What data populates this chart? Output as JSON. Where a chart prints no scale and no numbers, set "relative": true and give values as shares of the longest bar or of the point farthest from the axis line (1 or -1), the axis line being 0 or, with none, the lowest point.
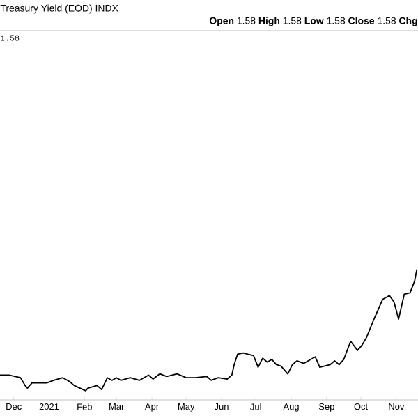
{
  "chart_data": {
    "type": "line",
    "title": "Treasury Yield (EOD) INDX",
    "subtitle": "**Open** 1.58 **High** 1.58 **Low** 1.58 **Close** 1.58 **Chg**",
    "annotations": [
      "1.58"
    ],
    "relative": true,
    "color": "#000000",
    "xlim": [
      "2020-11-19",
      "2021-11-20"
    ],
    "xticks": [
      {
        "value": "2020-12-01",
        "label": "Dec"
      },
      {
        "value": "2021-01-01",
        "label": "2021"
      },
      {
        "value": "2021-02-01",
        "label": "Feb"
      },
      {
        "value": "2021-03-01",
        "label": "Mar"
      },
      {
        "value": "2021-04-01",
        "label": "Apr"
      },
      {
        "value": "2021-05-01",
        "label": "May"
      },
      {
        "value": "2021-06-01",
        "label": "Jun"
      },
      {
        "value": "2021-07-01",
        "label": "Jul"
      },
      {
        "value": "2021-08-01",
        "label": "Aug"
      },
      {
        "value": "2021-09-01",
        "label": "Sep"
      },
      {
        "value": "2021-10-01",
        "label": "Oct"
      },
      {
        "value": "2021-11-01",
        "label": "Nov"
      }
    ],
    "x": [
      "2020-11-19",
      "2020-11-27",
      "2020-12-07",
      "2020-12-11",
      "2020-12-13",
      "2020-12-17",
      "2020-12-30",
      "2021-01-05",
      "2021-01-13",
      "2021-01-19",
      "2021-01-23",
      "2021-02-02",
      "2021-02-04",
      "2021-02-12",
      "2021-02-16",
      "2021-02-21",
      "2021-02-25",
      "2021-03-01",
      "2021-03-05",
      "2021-03-13",
      "2021-03-21",
      "2021-03-29",
      "2021-04-02",
      "2021-04-08",
      "2021-04-14",
      "2021-04-23",
      "2021-05-01",
      "2021-05-09",
      "2021-05-19",
      "2021-05-23",
      "2021-05-29",
      "2021-06-06",
      "2021-06-10",
      "2021-06-12",
      "2021-06-15",
      "2021-06-20",
      "2021-06-24",
      "2021-06-29",
      "2021-07-03",
      "2021-07-07",
      "2021-07-11",
      "2021-07-15",
      "2021-07-19",
      "2021-07-23",
      "2021-07-29",
      "2021-08-02",
      "2021-08-06",
      "2021-08-12",
      "2021-08-22",
      "2021-08-26",
      "2021-09-04",
      "2021-09-08",
      "2021-09-12",
      "2021-09-16",
      "2021-09-22",
      "2021-09-28",
      "2021-10-02",
      "2021-10-06",
      "2021-10-12",
      "2021-10-16",
      "2021-10-20",
      "2021-10-26",
      "2021-10-30",
      "2021-11-03",
      "2021-11-08",
      "2021-11-13",
      "2021-11-17",
      "2021-11-19"
    ],
    "values": [
      0.19,
      0.19,
      0.17,
      0.11,
      0.09,
      0.13,
      0.13,
      0.15,
      0.17,
      0.14,
      0.11,
      0.07,
      0.09,
      0.11,
      0.08,
      0.17,
      0.15,
      0.17,
      0.15,
      0.17,
      0.15,
      0.19,
      0.16,
      0.2,
      0.18,
      0.2,
      0.17,
      0.17,
      0.18,
      0.15,
      0.17,
      0.16,
      0.19,
      0.27,
      0.35,
      0.36,
      0.35,
      0.34,
      0.25,
      0.32,
      0.29,
      0.31,
      0.27,
      0.26,
      0.2,
      0.27,
      0.3,
      0.28,
      0.33,
      0.25,
      0.27,
      0.3,
      0.27,
      0.31,
      0.45,
      0.38,
      0.42,
      0.48,
      0.61,
      0.69,
      0.77,
      0.8,
      0.75,
      0.62,
      0.81,
      0.82,
      0.91,
      1
    ]
  }
}
